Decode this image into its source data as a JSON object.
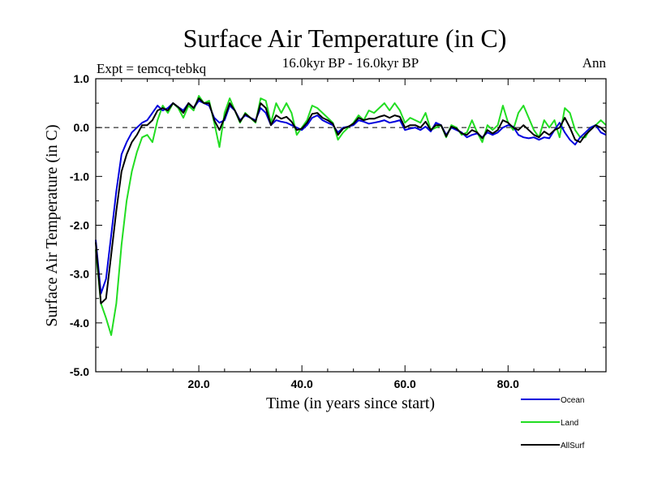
{
  "chart_data": {
    "type": "line",
    "title": "Surface Air Temperature (in C)",
    "subtitle": "16.0kyr BP - 16.0kyr BP",
    "expt_label": "Expt = temcq-tebkq",
    "period_label": "Ann",
    "xlabel": "Time (in years since start)",
    "ylabel": "Surface Air Temperature (in C)",
    "xlim": [
      0,
      99
    ],
    "ylim": [
      -5,
      1
    ],
    "xticks": [
      20,
      40,
      60,
      80
    ],
    "xtick_labels": [
      "20.0",
      "40.0",
      "60.0",
      "80.0"
    ],
    "yticks": [
      1,
      0,
      -1,
      -2,
      -3,
      -4,
      -5
    ],
    "ytick_labels": [
      "1.0",
      "0.0",
      "-1.0",
      "-2.0",
      "-3.0",
      "-4.0",
      "-5.0"
    ],
    "reference_line": 0,
    "x": [
      0,
      1,
      2,
      3,
      4,
      5,
      6,
      7,
      8,
      9,
      10,
      11,
      12,
      13,
      14,
      15,
      16,
      17,
      18,
      19,
      20,
      21,
      22,
      23,
      24,
      25,
      26,
      27,
      28,
      29,
      30,
      31,
      32,
      33,
      34,
      35,
      36,
      37,
      38,
      39,
      40,
      41,
      42,
      43,
      44,
      45,
      46,
      47,
      48,
      49,
      50,
      51,
      52,
      53,
      54,
      55,
      56,
      57,
      58,
      59,
      60,
      61,
      62,
      63,
      64,
      65,
      66,
      67,
      68,
      69,
      70,
      71,
      72,
      73,
      74,
      75,
      76,
      77,
      78,
      79,
      80,
      81,
      82,
      83,
      84,
      85,
      86,
      87,
      88,
      89,
      90,
      91,
      92,
      93,
      94,
      95,
      96,
      97,
      98,
      99
    ],
    "series": [
      {
        "name": "Ocean",
        "color": "#0000dd",
        "values": [
          -2.3,
          -3.4,
          -3.1,
          -2.2,
          -1.3,
          -0.55,
          -0.3,
          -0.1,
          0.0,
          0.1,
          0.15,
          0.3,
          0.45,
          0.35,
          0.4,
          0.5,
          0.42,
          0.35,
          0.5,
          0.4,
          0.55,
          0.5,
          0.45,
          0.2,
          0.1,
          0.15,
          0.45,
          0.35,
          0.15,
          0.25,
          0.2,
          0.15,
          0.4,
          0.3,
          0.05,
          0.15,
          0.12,
          0.1,
          0.05,
          0.0,
          -0.05,
          0.05,
          0.2,
          0.25,
          0.15,
          0.1,
          0.05,
          -0.1,
          0.0,
          0.02,
          0.05,
          0.15,
          0.12,
          0.08,
          0.1,
          0.12,
          0.15,
          0.1,
          0.12,
          0.15,
          -0.05,
          -0.02,
          0.0,
          -0.05,
          0.02,
          -0.08,
          0.1,
          0.05,
          -0.15,
          0.0,
          -0.05,
          -0.1,
          -0.2,
          -0.15,
          -0.12,
          -0.2,
          -0.1,
          -0.15,
          -0.1,
          0.0,
          0.05,
          0.02,
          -0.15,
          -0.2,
          -0.22,
          -0.2,
          -0.25,
          -0.2,
          -0.22,
          -0.05,
          0.1,
          -0.1,
          -0.25,
          -0.35,
          -0.2,
          -0.1,
          0.0,
          0.05,
          -0.1,
          -0.15
        ]
      },
      {
        "name": "Land",
        "color": "#22dd22",
        "values": [
          -2.5,
          -3.6,
          -3.9,
          -4.25,
          -3.6,
          -2.4,
          -1.5,
          -0.9,
          -0.5,
          -0.2,
          -0.15,
          -0.3,
          0.15,
          0.45,
          0.3,
          0.5,
          0.4,
          0.2,
          0.45,
          0.35,
          0.65,
          0.5,
          0.55,
          0.1,
          -0.4,
          0.3,
          0.6,
          0.35,
          0.1,
          0.3,
          0.2,
          0.1,
          0.6,
          0.55,
          0.1,
          0.5,
          0.3,
          0.5,
          0.3,
          -0.15,
          0.0,
          0.15,
          0.45,
          0.4,
          0.3,
          0.2,
          0.1,
          -0.25,
          -0.1,
          0.0,
          0.1,
          0.25,
          0.15,
          0.35,
          0.3,
          0.4,
          0.5,
          0.35,
          0.5,
          0.35,
          0.1,
          0.2,
          0.15,
          0.1,
          0.3,
          -0.05,
          0.0,
          0.05,
          -0.2,
          0.05,
          0.0,
          -0.15,
          -0.1,
          0.15,
          -0.1,
          -0.3,
          0.05,
          -0.05,
          0.05,
          0.45,
          0.1,
          -0.05,
          0.3,
          0.45,
          0.2,
          -0.05,
          -0.2,
          0.15,
          0.0,
          0.15,
          -0.2,
          0.4,
          0.3,
          -0.05,
          -0.2,
          -0.2,
          0.0,
          0.05,
          0.15,
          0.05
        ]
      },
      {
        "name": "AllSurf",
        "color": "#000000",
        "values": [
          -2.35,
          -3.6,
          -3.5,
          -2.6,
          -1.7,
          -0.9,
          -0.55,
          -0.3,
          -0.15,
          0.05,
          0.05,
          0.15,
          0.35,
          0.4,
          0.35,
          0.5,
          0.42,
          0.3,
          0.5,
          0.4,
          0.6,
          0.5,
          0.5,
          0.15,
          -0.05,
          0.2,
          0.5,
          0.35,
          0.12,
          0.28,
          0.2,
          0.12,
          0.5,
          0.4,
          0.05,
          0.25,
          0.18,
          0.22,
          0.12,
          -0.05,
          -0.02,
          0.1,
          0.28,
          0.3,
          0.2,
          0.15,
          0.08,
          -0.15,
          -0.02,
          0.02,
          0.08,
          0.2,
          0.15,
          0.18,
          0.18,
          0.22,
          0.25,
          0.2,
          0.25,
          0.22,
          0.0,
          0.05,
          0.05,
          0.0,
          0.12,
          -0.05,
          0.05,
          0.05,
          -0.18,
          0.02,
          -0.02,
          -0.12,
          -0.15,
          -0.05,
          -0.1,
          -0.22,
          -0.05,
          -0.12,
          -0.05,
          0.15,
          0.1,
          0.0,
          -0.05,
          0.05,
          -0.05,
          -0.15,
          -0.2,
          -0.08,
          -0.15,
          -0.05,
          0.0,
          0.2,
          0.0,
          -0.25,
          -0.3,
          -0.15,
          -0.05,
          0.05,
          0.0,
          -0.1
        ]
      }
    ],
    "legend": [
      "Ocean",
      "Land",
      "AllSurf"
    ],
    "legend_position": "bottom-right"
  }
}
